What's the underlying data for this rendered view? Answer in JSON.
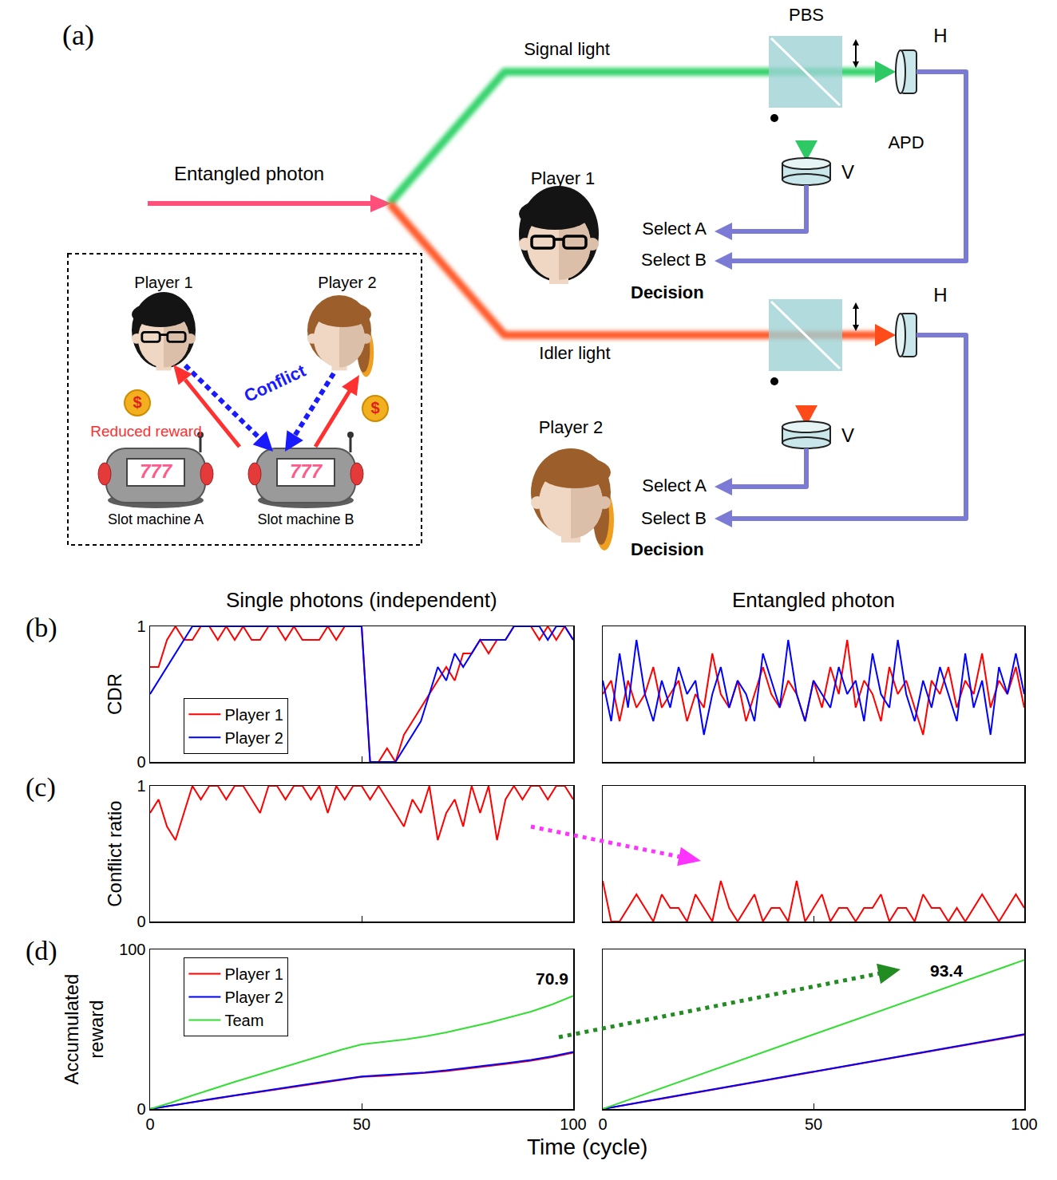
{
  "diagram": {
    "label": "(a)",
    "source": "Entangled photon",
    "beams": [
      "Signal light",
      "Idler light"
    ],
    "splitter": "PBS",
    "apd": "APD",
    "detectors": [
      "H",
      "V"
    ],
    "players": [
      {
        "name": "Player 1",
        "choices": [
          "Select A",
          "Select B"
        ],
        "caption": "Decision"
      },
      {
        "name": "Player 2",
        "choices": [
          "Select A",
          "Select B"
        ],
        "caption": "Decision"
      }
    ],
    "inset": {
      "players": [
        "Player 1",
        "Player 2"
      ],
      "conflict": "Conflict",
      "reward": "Reduced reward",
      "coin": "$",
      "display": "777",
      "machines": [
        "Slot machine A",
        "Slot machine B"
      ]
    }
  },
  "xlabel": "Time (cycle)",
  "chart_data": [
    {
      "type": "line",
      "label": "(b)",
      "title": "Single photons (independent)",
      "ylabel": "CDR",
      "x": [
        0,
        2,
        4,
        6,
        8,
        10,
        12,
        14,
        16,
        18,
        20,
        22,
        24,
        26,
        28,
        30,
        32,
        34,
        36,
        38,
        40,
        42,
        44,
        46,
        48,
        50,
        52,
        54,
        56,
        58,
        60,
        62,
        64,
        66,
        68,
        70,
        72,
        74,
        76,
        78,
        80,
        82,
        84,
        86,
        88,
        90,
        92,
        94,
        96,
        98,
        100
      ],
      "series": [
        {
          "name": "Player 1",
          "color": "#ff0000",
          "values": [
            0.7,
            0.7,
            0.9,
            1,
            0.9,
            0.9,
            1,
            1,
            0.9,
            1,
            0.9,
            1,
            0.9,
            0.9,
            1,
            1,
            0.9,
            1,
            0.9,
            0.9,
            0.9,
            1,
            0.9,
            1,
            1,
            1,
            0,
            0,
            0.1,
            0,
            0.2,
            0.3,
            0.4,
            0.5,
            0.6,
            0.7,
            0.6,
            0.8,
            0.8,
            0.9,
            0.8,
            0.9,
            0.9,
            1,
            1,
            1,
            0.9,
            1,
            0.9,
            1,
            0.9
          ]
        },
        {
          "name": "Player 2",
          "color": "#0000ff",
          "values": [
            0.5,
            0.6,
            0.7,
            0.8,
            0.9,
            1,
            1,
            1,
            1,
            1,
            1,
            1,
            1,
            1,
            1,
            1,
            1,
            1,
            1,
            1,
            1,
            1,
            1,
            1,
            1,
            1,
            0,
            0,
            0,
            0,
            0.1,
            0.2,
            0.3,
            0.5,
            0.7,
            0.6,
            0.8,
            0.7,
            0.8,
            0.9,
            0.9,
            0.9,
            0.9,
            1,
            1,
            1,
            1,
            0.9,
            1,
            1,
            0.9
          ]
        }
      ],
      "xlim": [
        0,
        100
      ],
      "xticks": [
        0,
        50,
        100
      ],
      "ylim": [
        0,
        1
      ],
      "yticks": [
        0,
        1
      ],
      "grid": false,
      "legend": "lower left",
      "tick_labels": "y"
    },
    {
      "type": "line",
      "title": "Entangled photon",
      "x": [
        0,
        2,
        4,
        6,
        8,
        10,
        12,
        14,
        16,
        18,
        20,
        22,
        24,
        26,
        28,
        30,
        32,
        34,
        36,
        38,
        40,
        42,
        44,
        46,
        48,
        50,
        52,
        54,
        56,
        58,
        60,
        62,
        64,
        66,
        68,
        70,
        72,
        74,
        76,
        78,
        80,
        82,
        84,
        86,
        88,
        90,
        92,
        94,
        96,
        98,
        100
      ],
      "series": [
        {
          "color": "#ff0000",
          "values": [
            0.5,
            0.6,
            0.3,
            0.6,
            0.4,
            0.5,
            0.7,
            0.4,
            0.5,
            0.6,
            0.3,
            0.5,
            0.4,
            0.8,
            0.5,
            0.4,
            0.6,
            0.3,
            0.5,
            0.7,
            0.5,
            0.4,
            0.6,
            0.5,
            0.3,
            0.6,
            0.4,
            0.7,
            0.5,
            0.9,
            0.4,
            0.6,
            0.5,
            0.3,
            0.7,
            0.5,
            0.6,
            0.4,
            0.2,
            0.6,
            0.5,
            0.7,
            0.4,
            0.6,
            0.5,
            0.8,
            0.4,
            0.6,
            0.5,
            0.7,
            0.4
          ]
        },
        {
          "color": "#0000ff",
          "values": [
            0.6,
            0.3,
            0.8,
            0.4,
            0.9,
            0.5,
            0.3,
            0.6,
            0.4,
            0.7,
            0.5,
            0.6,
            0.2,
            0.5,
            0.7,
            0.4,
            0.6,
            0.5,
            0.3,
            0.8,
            0.6,
            0.4,
            0.9,
            0.5,
            0.3,
            0.6,
            0.5,
            0.4,
            0.7,
            0.5,
            0.6,
            0.3,
            0.8,
            0.5,
            0.4,
            0.9,
            0.5,
            0.3,
            0.6,
            0.4,
            0.7,
            0.5,
            0.3,
            0.8,
            0.4,
            0.6,
            0.2,
            0.7,
            0.5,
            0.8,
            0.5
          ]
        }
      ],
      "xlim": [
        0,
        100
      ],
      "xticks": [
        0,
        50,
        100
      ],
      "ylim": [
        0,
        1
      ],
      "yticks": [
        0,
        1
      ],
      "grid": false,
      "tick_labels": false
    },
    {
      "type": "line",
      "label": "(c)",
      "ylabel": "Conflict ratio",
      "x": [
        0,
        2,
        4,
        6,
        8,
        10,
        12,
        14,
        16,
        18,
        20,
        22,
        24,
        26,
        28,
        30,
        32,
        34,
        36,
        38,
        40,
        42,
        44,
        46,
        48,
        50,
        52,
        54,
        56,
        58,
        60,
        62,
        64,
        66,
        68,
        70,
        72,
        74,
        76,
        78,
        80,
        82,
        84,
        86,
        88,
        90,
        92,
        94,
        96,
        98,
        100
      ],
      "series": [
        {
          "color": "#ff0000",
          "values": [
            0.8,
            0.9,
            0.7,
            0.6,
            0.8,
            1,
            0.9,
            1,
            1,
            0.9,
            1,
            1,
            0.9,
            0.8,
            1,
            1,
            0.9,
            1,
            1,
            0.9,
            1,
            0.8,
            1,
            0.9,
            1,
            1,
            0.9,
            1,
            0.9,
            0.8,
            0.7,
            0.9,
            0.8,
            1,
            0.6,
            0.8,
            0.9,
            0.7,
            1,
            0.8,
            1,
            0.6,
            0.9,
            1,
            0.9,
            1,
            1,
            0.9,
            1,
            1,
            0.9
          ]
        }
      ],
      "xlim": [
        0,
        100
      ],
      "xticks": [
        0,
        50,
        100
      ],
      "ylim": [
        0,
        1
      ],
      "yticks": [
        0,
        1
      ],
      "grid": false,
      "tick_labels": "y"
    },
    {
      "type": "line",
      "x": [
        0,
        2,
        4,
        6,
        8,
        10,
        12,
        14,
        16,
        18,
        20,
        22,
        24,
        26,
        28,
        30,
        32,
        34,
        36,
        38,
        40,
        42,
        44,
        46,
        48,
        50,
        52,
        54,
        56,
        58,
        60,
        62,
        64,
        66,
        68,
        70,
        72,
        74,
        76,
        78,
        80,
        82,
        84,
        86,
        88,
        90,
        92,
        94,
        96,
        98,
        100
      ],
      "series": [
        {
          "color": "#ff0000",
          "values": [
            0.3,
            0,
            0,
            0.1,
            0.2,
            0.1,
            0,
            0.2,
            0.1,
            0.1,
            0,
            0.2,
            0.1,
            0,
            0.3,
            0.1,
            0,
            0.1,
            0.2,
            0,
            0.1,
            0.1,
            0,
            0.3,
            0,
            0.1,
            0.2,
            0,
            0.1,
            0.1,
            0,
            0.1,
            0.1,
            0.2,
            0,
            0.1,
            0.1,
            0,
            0.2,
            0.1,
            0.1,
            0,
            0.1,
            0,
            0.1,
            0.2,
            0.1,
            0,
            0.1,
            0.2,
            0.1
          ]
        }
      ],
      "xlim": [
        0,
        100
      ],
      "xticks": [
        0,
        50,
        100
      ],
      "ylim": [
        0,
        1
      ],
      "yticks": [
        0,
        1
      ],
      "grid": false,
      "tick_labels": false
    },
    {
      "type": "line",
      "label": "(d)",
      "ylabel": "Accumulated reward",
      "x": [
        0,
        5,
        10,
        15,
        20,
        25,
        30,
        35,
        40,
        45,
        50,
        55,
        60,
        65,
        70,
        75,
        80,
        85,
        90,
        95,
        100
      ],
      "series": [
        {
          "name": "Player 1",
          "color": "#ff0000",
          "values": [
            0,
            2,
            4.2,
            6.3,
            8.4,
            10.4,
            12.4,
            14.4,
            16.4,
            18.4,
            20.1,
            20.8,
            21.6,
            22.6,
            23.8,
            25.3,
            26.8,
            28.5,
            30.2,
            32.5,
            35.2
          ]
        },
        {
          "name": "Player 2",
          "color": "#0000ff",
          "values": [
            0,
            2,
            4.3,
            6.5,
            8.6,
            10.6,
            12.6,
            14.6,
            16.6,
            18.6,
            20.4,
            21.2,
            21.9,
            22.9,
            24.2,
            25.7,
            27.2,
            29,
            30.8,
            33,
            35.7
          ]
        },
        {
          "name": "Team",
          "color": "#33dd33",
          "values": [
            0,
            4,
            8.5,
            12.8,
            17,
            21,
            25,
            29,
            33,
            37,
            40.5,
            42,
            43.5,
            45.5,
            48,
            51,
            54,
            57.5,
            61,
            65.5,
            70.9
          ]
        }
      ],
      "annotations": [
        {
          "text": "70.9",
          "x": 100,
          "y": 70.9
        }
      ],
      "xlim": [
        0,
        100
      ],
      "xticks": [
        0,
        50,
        100
      ],
      "ylim": [
        0,
        100
      ],
      "yticks": [
        0,
        100
      ],
      "grid": false,
      "legend": "upper left"
    },
    {
      "type": "line",
      "x": [
        0,
        5,
        10,
        15,
        20,
        25,
        30,
        35,
        40,
        45,
        50,
        55,
        60,
        65,
        70,
        75,
        80,
        85,
        90,
        95,
        100
      ],
      "series": [
        {
          "color": "#ff0000",
          "values": [
            0,
            2.2,
            4.6,
            6.9,
            9.2,
            11.6,
            13.9,
            16.2,
            18.6,
            20.9,
            23.2,
            25.6,
            27.9,
            30.2,
            32.6,
            34.9,
            37.2,
            39.6,
            41.9,
            44.2,
            46.5
          ]
        },
        {
          "color": "#0000ff",
          "values": [
            0,
            2.5,
            4.8,
            7.1,
            9.5,
            11.8,
            14.1,
            16.5,
            18.8,
            21.1,
            23.5,
            25.8,
            28.1,
            30.5,
            32.8,
            35.1,
            37.5,
            39.8,
            42.1,
            44.5,
            46.9
          ]
        },
        {
          "color": "#33dd33",
          "values": [
            0,
            4.7,
            9.4,
            14,
            18.7,
            23.4,
            28,
            32.7,
            37.4,
            42,
            46.7,
            51.4,
            56,
            60.7,
            65.4,
            70,
            74.7,
            79.4,
            84,
            88.7,
            93.4
          ]
        }
      ],
      "annotations": [
        {
          "text": "93.4",
          "x": 100,
          "y": 93.4
        }
      ],
      "xlim": [
        0,
        100
      ],
      "xticks": [
        0,
        50,
        100
      ],
      "ylim": [
        0,
        100
      ],
      "yticks": [
        0,
        100
      ],
      "grid": false,
      "tick_labels": "x"
    }
  ]
}
